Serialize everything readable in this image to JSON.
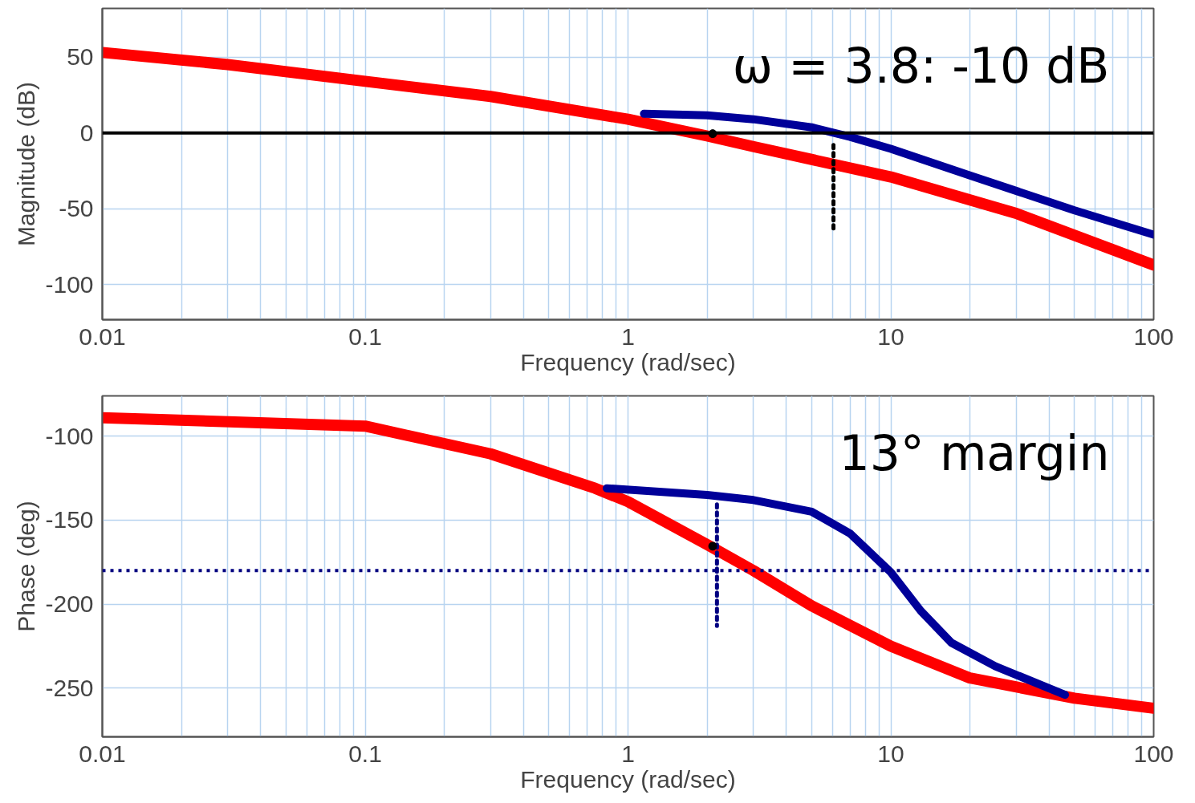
{
  "chart_data": [
    {
      "type": "line",
      "xlabel": "Frequency (rad/sec)",
      "ylabel": "Magnitude (dB)",
      "log": "x",
      "grid": true,
      "xlim": [
        0.01,
        100
      ],
      "ylim": [
        -123,
        82
      ],
      "xticks": [
        0.01,
        {
          "value": 0.02,
          "label": null
        },
        {
          "value": 0.03,
          "label": null
        },
        {
          "value": 0.04,
          "label": null
        },
        {
          "value": 0.05,
          "label": null
        },
        {
          "value": 0.06,
          "label": null
        },
        {
          "value": 0.07,
          "label": null
        },
        {
          "value": 0.08,
          "label": null
        },
        {
          "value": 0.09,
          "label": null
        },
        0.1,
        {
          "value": 0.2,
          "label": null
        },
        {
          "value": 0.3,
          "label": null
        },
        {
          "value": 0.4,
          "label": null
        },
        {
          "value": 0.5,
          "label": null
        },
        {
          "value": 0.6,
          "label": null
        },
        {
          "value": 0.7,
          "label": null
        },
        {
          "value": 0.8,
          "label": null
        },
        {
          "value": 0.9,
          "label": null
        },
        1,
        {
          "value": 2,
          "label": null
        },
        {
          "value": 3,
          "label": null
        },
        {
          "value": 4,
          "label": null
        },
        {
          "value": 5,
          "label": null
        },
        {
          "value": 6,
          "label": null
        },
        {
          "value": 7,
          "label": null
        },
        {
          "value": 8,
          "label": null
        },
        {
          "value": 9,
          "label": null
        },
        10,
        {
          "value": 20,
          "label": null
        },
        {
          "value": 30,
          "label": null
        },
        {
          "value": 40,
          "label": null
        },
        {
          "value": 50,
          "label": null
        },
        {
          "value": 60,
          "label": null
        },
        {
          "value": 70,
          "label": null
        },
        {
          "value": 80,
          "label": null
        },
        {
          "value": 90,
          "label": null
        },
        100
      ],
      "yticks": [
        -100,
        -50,
        0,
        50
      ],
      "annotations": [
        "ω = 3.8: -10 dB"
      ],
      "ref_lines": [
        {
          "axis": "y",
          "value": 0,
          "color": "#000000",
          "line_style": "solid"
        }
      ],
      "series": [
        {
          "color": "#ff0000",
          "x": [
            0.01,
            0.03,
            0.1,
            0.3,
            1,
            2,
            3,
            10,
            30,
            100
          ],
          "values": [
            53,
            45,
            34,
            24,
            9,
            -2,
            -9,
            -29,
            -53,
            -87
          ]
        },
        {
          "color": "#000099",
          "x": [
            1.15,
            2,
            3,
            5,
            7,
            10,
            20,
            50,
            100
          ],
          "values": [
            12.6,
            11.6,
            9,
            3.7,
            -2.6,
            -10.5,
            -28,
            -51,
            -67
          ]
        },
        {
          "color": "#000000",
          "line_style": "dotted",
          "x": [
            6.05,
            6.05
          ],
          "values": [
            -8,
            -63
          ]
        },
        {
          "type": "scatter",
          "marker": "circle",
          "color": "#000000",
          "x": [
            2.1
          ],
          "values": [
            -0.5
          ]
        }
      ]
    },
    {
      "type": "line",
      "xlabel": "Frequency (rad/sec)",
      "ylabel": "Phase (deg)",
      "log": "x",
      "grid": true,
      "xlim": [
        0.01,
        100
      ],
      "ylim": [
        -279,
        -76
      ],
      "xticks": [
        0.01,
        {
          "value": 0.02,
          "label": null
        },
        {
          "value": 0.03,
          "label": null
        },
        {
          "value": 0.04,
          "label": null
        },
        {
          "value": 0.05,
          "label": null
        },
        {
          "value": 0.06,
          "label": null
        },
        {
          "value": 0.07,
          "label": null
        },
        {
          "value": 0.08,
          "label": null
        },
        {
          "value": 0.09,
          "label": null
        },
        0.1,
        {
          "value": 0.2,
          "label": null
        },
        {
          "value": 0.3,
          "label": null
        },
        {
          "value": 0.4,
          "label": null
        },
        {
          "value": 0.5,
          "label": null
        },
        {
          "value": 0.6,
          "label": null
        },
        {
          "value": 0.7,
          "label": null
        },
        {
          "value": 0.8,
          "label": null
        },
        {
          "value": 0.9,
          "label": null
        },
        1,
        {
          "value": 2,
          "label": null
        },
        {
          "value": 3,
          "label": null
        },
        {
          "value": 4,
          "label": null
        },
        {
          "value": 5,
          "label": null
        },
        {
          "value": 6,
          "label": null
        },
        {
          "value": 7,
          "label": null
        },
        {
          "value": 8,
          "label": null
        },
        {
          "value": 9,
          "label": null
        },
        10,
        {
          "value": 20,
          "label": null
        },
        {
          "value": 30,
          "label": null
        },
        {
          "value": 40,
          "label": null
        },
        {
          "value": 50,
          "label": null
        },
        {
          "value": 60,
          "label": null
        },
        {
          "value": 70,
          "label": null
        },
        {
          "value": 80,
          "label": null
        },
        {
          "value": 90,
          "label": null
        },
        100
      ],
      "yticks": [
        -250,
        -200,
        -150,
        -100
      ],
      "annotations": [
        "13° margin"
      ],
      "ref_lines": [
        {
          "axis": "y",
          "value": -180,
          "color": "#000080",
          "line_style": "dotted"
        }
      ],
      "series": [
        {
          "color": "#ff0000",
          "x": [
            0.01,
            0.1,
            0.3,
            0.75,
            1,
            2,
            3,
            5,
            10,
            20,
            50,
            100
          ],
          "values": [
            -89,
            -94,
            -110.5,
            -131,
            -139,
            -164.5,
            -180,
            -201,
            -225,
            -244,
            -256,
            -262
          ]
        },
        {
          "color": "#000099",
          "x": [
            0.83,
            2,
            3,
            5,
            7,
            10,
            13,
            17,
            25,
            46
          ],
          "values": [
            -131,
            -135,
            -138,
            -145,
            -158,
            -181,
            -204,
            -223,
            -237,
            -254
          ]
        },
        {
          "color": "#000080",
          "line_style": "dotted",
          "x": [
            2.18,
            2.18
          ],
          "values": [
            -140.6,
            -213
          ]
        },
        {
          "type": "scatter",
          "marker": "circle",
          "color": "#000000",
          "x": [
            2.1
          ],
          "values": [
            -165.5
          ]
        }
      ]
    }
  ]
}
